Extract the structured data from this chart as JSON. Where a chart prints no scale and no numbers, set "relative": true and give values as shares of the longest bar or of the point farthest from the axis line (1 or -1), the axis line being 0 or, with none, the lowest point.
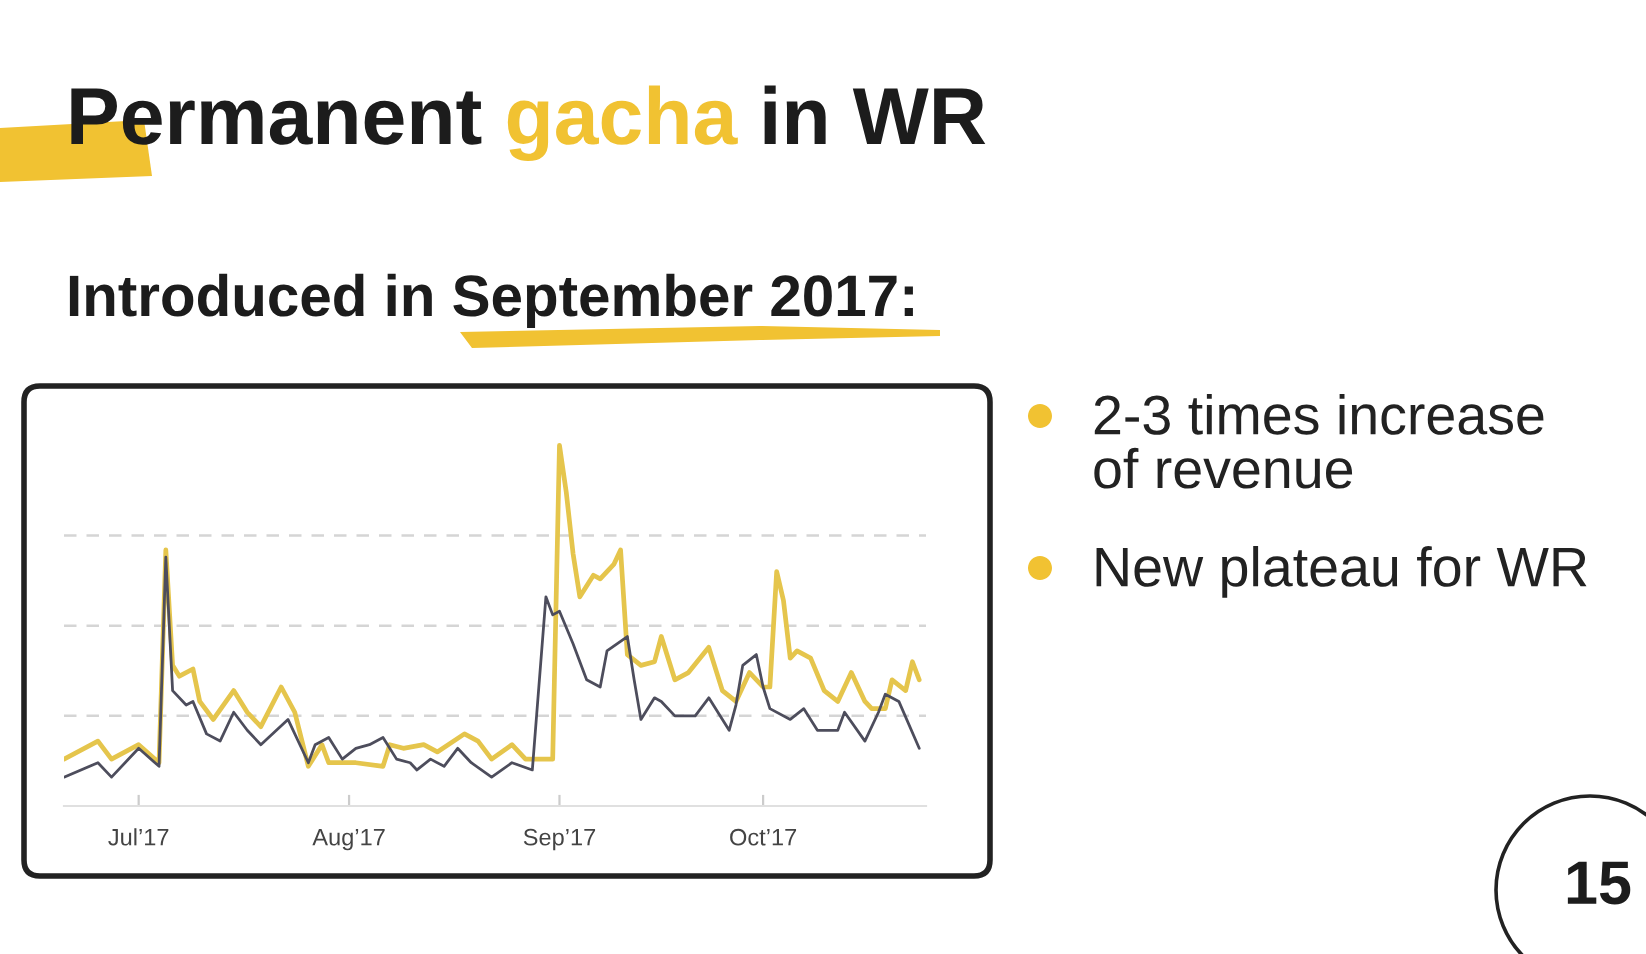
{
  "chart_data": {
    "type": "line",
    "title": "Permanent gacha in WR",
    "subtitle": "Introduced in September 2017:",
    "relative": true,
    "grid": "y",
    "xlim": [
      "2017-06-20",
      "2017-10-25"
    ],
    "xticks": [
      {
        "value": "2017-07-01",
        "label": "Jul’17"
      },
      {
        "value": "2017-08-01",
        "label": "Aug’17"
      },
      {
        "value": "2017-09-01",
        "label": "Sep’17"
      },
      {
        "value": "2017-10-01",
        "label": "Oct’17"
      }
    ],
    "series": [
      {
        "color": "#e5c54c",
        "x": [
          "2017-06-20",
          "2017-06-25",
          "2017-06-27",
          "2017-07-01",
          "2017-07-04",
          "2017-07-05",
          "2017-07-06",
          "2017-07-07",
          "2017-07-09",
          "2017-07-10",
          "2017-07-12",
          "2017-07-15",
          "2017-07-17",
          "2017-07-19",
          "2017-07-22",
          "2017-07-24",
          "2017-07-26",
          "2017-07-28",
          "2017-07-29",
          "2017-08-02",
          "2017-08-06",
          "2017-08-07",
          "2017-08-09",
          "2017-08-12",
          "2017-08-14",
          "2017-08-18",
          "2017-08-20",
          "2017-08-22",
          "2017-08-25",
          "2017-08-27",
          "2017-08-31",
          "2017-09-01",
          "2017-09-02",
          "2017-09-03",
          "2017-09-04",
          "2017-09-06",
          "2017-09-07",
          "2017-09-09",
          "2017-09-10",
          "2017-09-11",
          "2017-09-13",
          "2017-09-15",
          "2017-09-16",
          "2017-09-18",
          "2017-09-20",
          "2017-09-23",
          "2017-09-25",
          "2017-09-27",
          "2017-09-29",
          "2017-10-01",
          "2017-10-02",
          "2017-10-03",
          "2017-10-04",
          "2017-10-05",
          "2017-10-06",
          "2017-10-08",
          "2017-10-10",
          "2017-10-12",
          "2017-10-14",
          "2017-10-16",
          "2017-10-17",
          "2017-10-19",
          "2017-10-20",
          "2017-10-22",
          "2017-10-23",
          "2017-10-24"
        ],
        "values": [
          0.13,
          0.18,
          0.13,
          0.17,
          0.12,
          0.71,
          0.39,
          0.36,
          0.38,
          0.29,
          0.24,
          0.32,
          0.26,
          0.22,
          0.33,
          0.26,
          0.11,
          0.17,
          0.12,
          0.12,
          0.11,
          0.17,
          0.16,
          0.17,
          0.15,
          0.2,
          0.18,
          0.13,
          0.17,
          0.13,
          0.13,
          1.0,
          0.87,
          0.7,
          0.58,
          0.64,
          0.63,
          0.67,
          0.71,
          0.42,
          0.39,
          0.4,
          0.47,
          0.35,
          0.37,
          0.44,
          0.32,
          0.29,
          0.37,
          0.33,
          0.33,
          0.65,
          0.57,
          0.41,
          0.43,
          0.41,
          0.32,
          0.29,
          0.37,
          0.29,
          0.27,
          0.27,
          0.35,
          0.32,
          0.4,
          0.35
        ]
      },
      {
        "color": "#4d4d5c",
        "x": [
          "2017-06-20",
          "2017-06-25",
          "2017-06-27",
          "2017-07-01",
          "2017-07-04",
          "2017-07-05",
          "2017-07-06",
          "2017-07-08",
          "2017-07-09",
          "2017-07-11",
          "2017-07-13",
          "2017-07-15",
          "2017-07-17",
          "2017-07-19",
          "2017-07-23",
          "2017-07-26",
          "2017-07-27",
          "2017-07-29",
          "2017-07-31",
          "2017-08-02",
          "2017-08-04",
          "2017-08-06",
          "2017-08-08",
          "2017-08-10",
          "2017-08-11",
          "2017-08-13",
          "2017-08-15",
          "2017-08-17",
          "2017-08-19",
          "2017-08-22",
          "2017-08-25",
          "2017-08-28",
          "2017-08-30",
          "2017-08-31",
          "2017-09-01",
          "2017-09-03",
          "2017-09-05",
          "2017-09-07",
          "2017-09-08",
          "2017-09-11",
          "2017-09-12",
          "2017-09-13",
          "2017-09-15",
          "2017-09-16",
          "2017-09-18",
          "2017-09-21",
          "2017-09-23",
          "2017-09-26",
          "2017-09-27",
          "2017-09-28",
          "2017-09-30",
          "2017-10-01",
          "2017-10-02",
          "2017-10-05",
          "2017-10-07",
          "2017-10-09",
          "2017-10-12",
          "2017-10-13",
          "2017-10-16",
          "2017-10-18",
          "2017-10-19",
          "2017-10-21",
          "2017-10-24"
        ],
        "values": [
          0.08,
          0.12,
          0.08,
          0.16,
          0.11,
          0.69,
          0.32,
          0.28,
          0.29,
          0.2,
          0.18,
          0.26,
          0.21,
          0.17,
          0.24,
          0.12,
          0.17,
          0.19,
          0.13,
          0.16,
          0.17,
          0.19,
          0.13,
          0.12,
          0.1,
          0.13,
          0.11,
          0.16,
          0.12,
          0.08,
          0.12,
          0.1,
          0.58,
          0.53,
          0.54,
          0.45,
          0.35,
          0.33,
          0.43,
          0.47,
          0.35,
          0.24,
          0.3,
          0.29,
          0.25,
          0.25,
          0.3,
          0.21,
          0.28,
          0.39,
          0.42,
          0.33,
          0.27,
          0.24,
          0.27,
          0.21,
          0.21,
          0.26,
          0.18,
          0.26,
          0.31,
          0.29,
          0.16
        ]
      }
    ],
    "annotations": [
      "2-3 times increase of revenue",
      "New plateau for WR",
      "15"
    ]
  }
}
